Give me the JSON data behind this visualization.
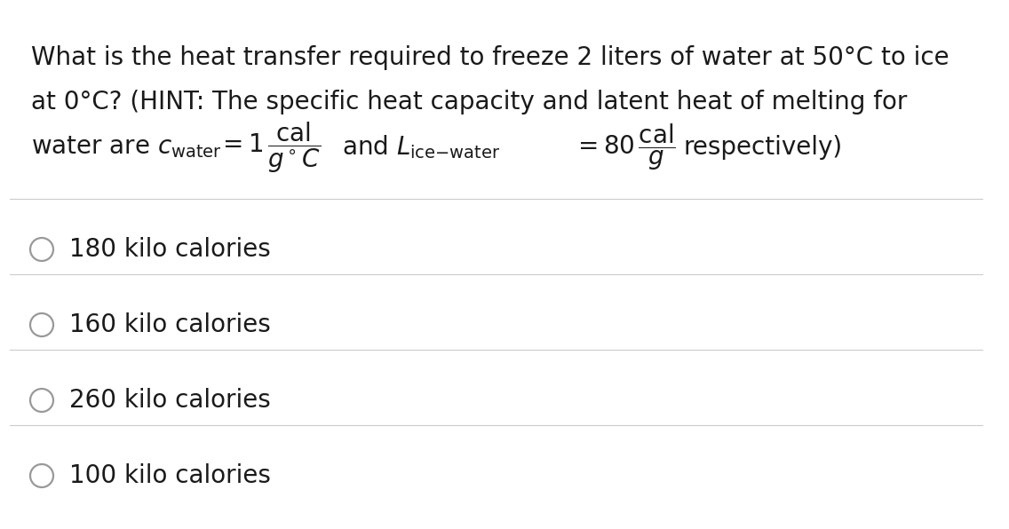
{
  "background_color": "#ffffff",
  "question_line1": "What is the heat transfer required to freeze 2 liters of water at 50°C to ice",
  "question_line2": "at 0°C? (HINT: The specific heat capacity and latent heat of melting for",
  "options": [
    "180 kilo calories",
    "160 kilo calories",
    "260 kilo calories",
    "100 kilo calories"
  ],
  "divider_color": "#cccccc",
  "text_color": "#1a1a1a",
  "circle_color": "#999999",
  "font_size_question": 20,
  "font_size_options": 20,
  "fig_width": 11.36,
  "fig_height": 5.96,
  "fig_dpi": 100
}
